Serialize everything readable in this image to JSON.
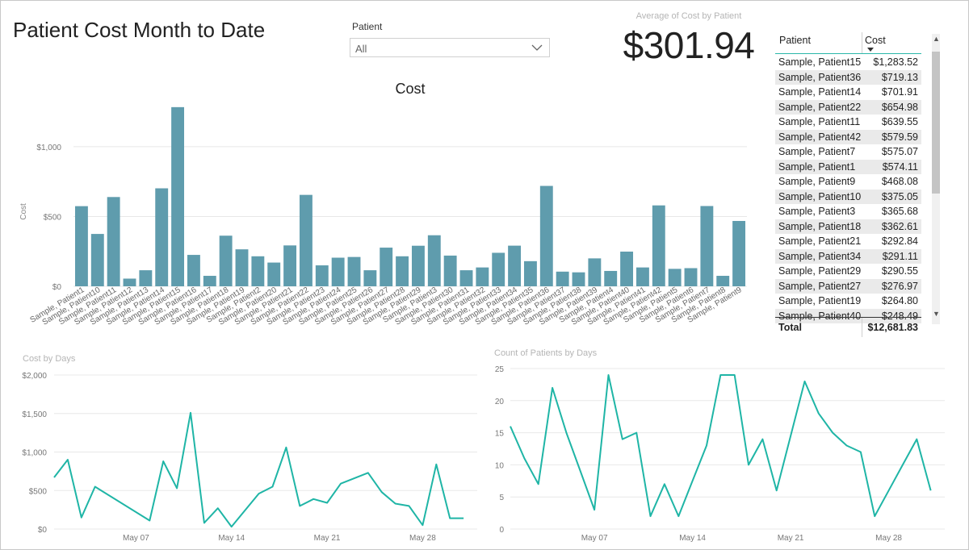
{
  "page": {
    "title": "Patient Cost Month to Date"
  },
  "slicer": {
    "label": "Patient",
    "value": "All",
    "icon": "chevron-down-icon"
  },
  "card": {
    "label": "Average of Cost by Patient",
    "value": "$301.94"
  },
  "table": {
    "headers": {
      "patient": "Patient",
      "cost": "Cost"
    },
    "rows": [
      {
        "patient": "Sample, Patient15",
        "cost": "$1,283.52"
      },
      {
        "patient": "Sample, Patient36",
        "cost": "$719.13"
      },
      {
        "patient": "Sample, Patient14",
        "cost": "$701.91"
      },
      {
        "patient": "Sample, Patient22",
        "cost": "$654.98"
      },
      {
        "patient": "Sample, Patient11",
        "cost": "$639.55"
      },
      {
        "patient": "Sample, Patient42",
        "cost": "$579.59"
      },
      {
        "patient": "Sample, Patient7",
        "cost": "$575.07"
      },
      {
        "patient": "Sample, Patient1",
        "cost": "$574.11"
      },
      {
        "patient": "Sample, Patient9",
        "cost": "$468.08"
      },
      {
        "patient": "Sample, Patient10",
        "cost": "$375.05"
      },
      {
        "patient": "Sample, Patient3",
        "cost": "$365.68"
      },
      {
        "patient": "Sample, Patient18",
        "cost": "$362.61"
      },
      {
        "patient": "Sample, Patient21",
        "cost": "$292.84"
      },
      {
        "patient": "Sample, Patient34",
        "cost": "$291.11"
      },
      {
        "patient": "Sample, Patient29",
        "cost": "$290.55"
      },
      {
        "patient": "Sample, Patient27",
        "cost": "$276.97"
      },
      {
        "patient": "Sample, Patient19",
        "cost": "$264.80"
      },
      {
        "patient": "Sample, Patient40",
        "cost": "$248.49"
      }
    ],
    "total_label": "Total",
    "total_value": "$12,681.83"
  },
  "chart_data": [
    {
      "type": "bar",
      "title": "Cost",
      "ylabel": "Cost",
      "xlabel": "",
      "ylim": [
        0,
        1300
      ],
      "yticks": [
        0,
        500,
        1000
      ],
      "ytick_labels": [
        "$0",
        "$500",
        "$1,000"
      ],
      "grid": true,
      "color": "#5f9cad",
      "categories": [
        "Sample, Patient1",
        "Sample, Patient10",
        "Sample, Patient11",
        "Sample, Patient12",
        "Sample, Patient13",
        "Sample, Patient14",
        "Sample, Patient15",
        "Sample, Patient16",
        "Sample, Patient17",
        "Sample, Patient18",
        "Sample, Patient19",
        "Sample, Patient2",
        "Sample, Patient20",
        "Sample, Patient21",
        "Sample, Patient22",
        "Sample, Patient23",
        "Sample, Patient24",
        "Sample, Patient25",
        "Sample, Patient26",
        "Sample, Patient27",
        "Sample, Patient28",
        "Sample, Patient29",
        "Sample, Patient3",
        "Sample, Patient30",
        "Sample, Patient31",
        "Sample, Patient32",
        "Sample, Patient33",
        "Sample, Patient34",
        "Sample, Patient35",
        "Sample, Patient36",
        "Sample, Patient37",
        "Sample, Patient38",
        "Sample, Patient39",
        "Sample, Patient4",
        "Sample, Patient40",
        "Sample, Patient41",
        "Sample, Patient42",
        "Sample, Patient5",
        "Sample, Patient6",
        "Sample, Patient7",
        "Sample, Patient8",
        "Sample, Patient9"
      ],
      "values": [
        574.11,
        375.05,
        639.55,
        55,
        115,
        701.91,
        1283.52,
        225,
        75,
        362.61,
        264.8,
        215,
        170,
        292.84,
        654.98,
        150,
        205,
        210,
        115,
        276.97,
        215,
        290.55,
        365.68,
        220,
        115,
        135,
        240,
        291.11,
        180,
        719.13,
        105,
        100,
        200,
        110,
        248.49,
        135,
        579.59,
        125,
        130,
        575.07,
        75,
        468.08
      ]
    },
    {
      "type": "line",
      "title": "Cost by Days",
      "xlabel": "",
      "ylabel": "",
      "ylim": [
        0,
        2000
      ],
      "yticks": [
        0,
        500,
        1000,
        1500,
        2000
      ],
      "ytick_labels": [
        "$0",
        "$500",
        "$1,000",
        "$1,500",
        "$2,000"
      ],
      "xlim": [
        "2017-05-01",
        "2017-06-01"
      ],
      "xticks": [
        "2017-05-07",
        "2017-05-14",
        "2017-05-21",
        "2017-05-28"
      ],
      "xtick_labels": [
        "May 07",
        "May 14",
        "May 21",
        "May 28"
      ],
      "grid": true,
      "color": "#1fb5a6",
      "x": [
        "2017-05-01",
        "2017-05-02",
        "2017-05-03",
        "2017-05-04",
        "2017-05-08",
        "2017-05-09",
        "2017-05-10",
        "2017-05-11",
        "2017-05-12",
        "2017-05-13",
        "2017-05-14",
        "2017-05-16",
        "2017-05-17",
        "2017-05-18",
        "2017-05-19",
        "2017-05-20",
        "2017-05-21",
        "2017-05-22",
        "2017-05-24",
        "2017-05-25",
        "2017-05-26",
        "2017-05-27",
        "2017-05-28",
        "2017-05-29",
        "2017-05-30",
        "2017-05-31"
      ],
      "values": [
        670,
        900,
        150,
        550,
        110,
        880,
        530,
        1510,
        80,
        270,
        30,
        460,
        550,
        1060,
        300,
        390,
        340,
        590,
        730,
        480,
        330,
        300,
        50,
        840,
        140,
        140
      ]
    },
    {
      "type": "line",
      "title": "Count of Patients by Days",
      "xlabel": "",
      "ylabel": "",
      "ylim": [
        0,
        25
      ],
      "yticks": [
        0,
        5,
        10,
        15,
        20,
        25
      ],
      "ytick_labels": [
        "0",
        "5",
        "10",
        "15",
        "20",
        "25"
      ],
      "xlim": [
        "2017-05-01",
        "2017-06-01"
      ],
      "xticks": [
        "2017-05-07",
        "2017-05-14",
        "2017-05-21",
        "2017-05-28"
      ],
      "xtick_labels": [
        "May 07",
        "May 14",
        "May 21",
        "May 28"
      ],
      "grid": true,
      "color": "#1fb5a6",
      "x": [
        "2017-05-01",
        "2017-05-02",
        "2017-05-03",
        "2017-05-04",
        "2017-05-05",
        "2017-05-06",
        "2017-05-07",
        "2017-05-08",
        "2017-05-09",
        "2017-05-10",
        "2017-05-11",
        "2017-05-12",
        "2017-05-13",
        "2017-05-14",
        "2017-05-15",
        "2017-05-16",
        "2017-05-17",
        "2017-05-18",
        "2017-05-19",
        "2017-05-20",
        "2017-05-21",
        "2017-05-22",
        "2017-05-23",
        "2017-05-24",
        "2017-05-25",
        "2017-05-26",
        "2017-05-27",
        "2017-05-28",
        "2017-05-29",
        "2017-05-30",
        "2017-05-31"
      ],
      "values": [
        16,
        11,
        7,
        22,
        15,
        9,
        3,
        24,
        14,
        15,
        2,
        7,
        2,
        7.5,
        13,
        24,
        24,
        10,
        14,
        6,
        14.5,
        23,
        18,
        15,
        13,
        12,
        2,
        6,
        10,
        14,
        6
      ]
    }
  ]
}
